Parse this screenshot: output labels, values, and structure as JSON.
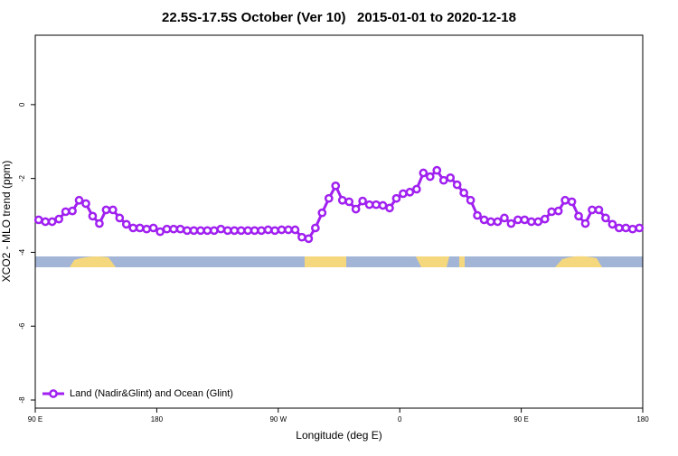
{
  "chart_data": {
    "type": "line",
    "title": "22.5S-17.5S October (Ver 10)   2015-01-01 to 2020-12-18",
    "xlabel": "Longitude (deg E)",
    "ylabel": "XCO2 - MLO trend (ppm)",
    "xlim": [
      90,
      540
    ],
    "xticks": [
      {
        "value": 90,
        "label": "90 E"
      },
      {
        "value": 180,
        "label": "180"
      },
      {
        "value": 270,
        "label": "90 W"
      },
      {
        "value": 360,
        "label": "0"
      },
      {
        "value": 450,
        "label": "90 E"
      },
      {
        "value": 540,
        "label": "180"
      }
    ],
    "ylim": [
      -8.22,
      1.88
    ],
    "yticks": [
      0,
      -2,
      -4,
      -6,
      -8
    ],
    "legend": "bottom-left",
    "x": [
      92.5,
      97.5,
      102.5,
      107.5,
      112.5,
      117.5,
      122.5,
      127.5,
      132.5,
      137.5,
      142.5,
      147.5,
      152.5,
      157.5,
      162.5,
      167.5,
      172.5,
      177.5,
      182.5,
      187.5,
      192.5,
      197.5,
      202.5,
      207.5,
      212.5,
      217.5,
      222.5,
      227.5,
      232.5,
      237.5,
      242.5,
      247.5,
      252.5,
      257.5,
      262.5,
      267.5,
      272.5,
      277.5,
      282.5,
      287.5,
      292.5,
      297.5,
      302.5,
      307.5,
      312.5,
      317.5,
      322.5,
      327.5,
      332.5,
      337.5,
      342.5,
      347.5,
      352.5,
      357.5,
      362.5,
      367.5,
      372.5,
      377.5,
      382.5,
      387.5,
      392.5,
      397.5,
      402.5,
      407.5,
      412.5,
      417.5,
      422.5,
      427.5,
      432.5,
      437.5,
      442.5,
      447.5,
      452.5,
      457.5,
      462.5,
      467.5,
      472.5,
      477.5,
      482.5,
      487.5,
      492.5,
      497.5,
      502.5,
      507.5,
      512.5,
      517.5,
      522.5,
      527.5,
      532.5,
      537.5
    ],
    "series": [
      {
        "name": "Land (Nadir&Glint) and Ocean (Glint)",
        "color": "#a020f0",
        "values": [
          -3.12,
          -3.17,
          -3.17,
          -3.1,
          -2.9,
          -2.88,
          -2.59,
          -2.68,
          -3.02,
          -3.22,
          -2.85,
          -2.85,
          -3.07,
          -3.24,
          -3.34,
          -3.34,
          -3.37,
          -3.34,
          -3.44,
          -3.37,
          -3.37,
          -3.37,
          -3.41,
          -3.41,
          -3.41,
          -3.41,
          -3.41,
          -3.37,
          -3.41,
          -3.41,
          -3.41,
          -3.41,
          -3.41,
          -3.41,
          -3.39,
          -3.41,
          -3.39,
          -3.39,
          -3.39,
          -3.59,
          -3.63,
          -3.34,
          -2.93,
          -2.54,
          -2.2,
          -2.59,
          -2.63,
          -2.83,
          -2.61,
          -2.71,
          -2.71,
          -2.73,
          -2.8,
          -2.54,
          -2.41,
          -2.37,
          -2.29,
          -1.85,
          -1.95,
          -1.78,
          -2.05,
          -1.98,
          -2.17,
          -2.39,
          -2.59,
          -3.0,
          -3.12,
          -3.17,
          -3.17,
          -3.07,
          -3.22,
          -3.12,
          -3.12,
          -3.17,
          -3.17,
          -3.1,
          -2.9,
          -2.88,
          -2.59,
          -2.63,
          -3.02,
          -3.22,
          -2.85,
          -2.85,
          -3.07,
          -3.24,
          -3.34,
          -3.34,
          -3.37,
          -3.34
        ]
      }
    ]
  }
}
